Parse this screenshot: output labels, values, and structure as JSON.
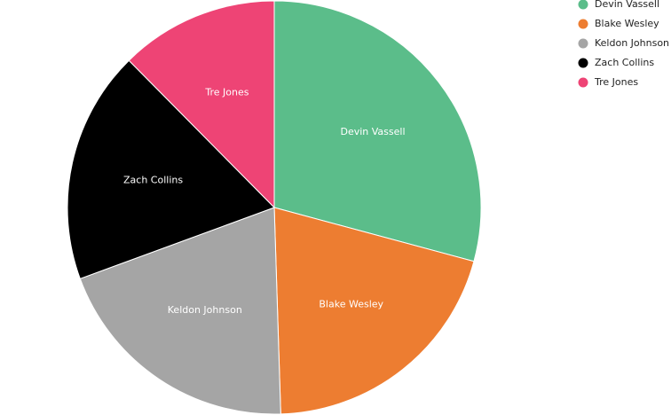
{
  "chart_data": {
    "type": "pie",
    "categories": [
      "Devin Vassell",
      "Blake Wesley",
      "Keldon Johnson",
      "Zach Collins",
      "Tre Jones"
    ],
    "values": [
      29.2,
      20.3,
      19.9,
      18.2,
      12.4
    ],
    "colors": [
      "#5bbd8a",
      "#ed7d31",
      "#a5a5a5",
      "#000000",
      "#ee4475"
    ],
    "legend": "top-right"
  }
}
